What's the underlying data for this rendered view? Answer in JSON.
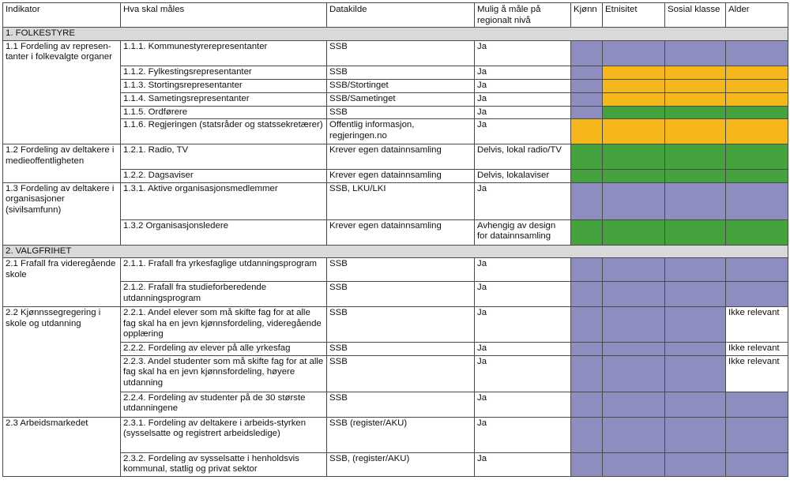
{
  "colors": {
    "purple": "#8d8dbf",
    "orange": "#f6b71a",
    "green": "#44a33c",
    "section_gray": "#d9d9d9"
  },
  "headers": {
    "indikator": "Indikator",
    "hva": "Hva skal måles",
    "datakilde": "Datakilde",
    "mulig": "Mulig å måle på regionalt nivå",
    "kjonn": "Kjønn",
    "etnisitet": "Etnisitet",
    "sosial": "Sosial klasse",
    "alder": "Alder"
  },
  "sections": {
    "s1": "1. FOLKESTYRE",
    "s2": "2. VALGFRIHET"
  },
  "indicators": {
    "i11": "1.1 Fordeling av represen-tanter i folkevalgte organer",
    "i12": "1.2 Fordeling av deltakere i medieoffentligheten",
    "i13": "1.3 Fordeling av deltakere i organisasjoner (sivilsamfunn)",
    "i21": "2.1 Frafall fra videregående skole",
    "i22": "2.2 Kjønnssegregering i skole og utdanning",
    "i23": "2.3 Arbeidsmarkedet"
  },
  "rows": [
    {
      "hva": "1.1.1. Kommunestyrerepresentanter",
      "kilde": "SSB",
      "mulig": "Ja",
      "alder": ""
    },
    {
      "hva": "1.1.2. Fylkestingsrepresentanter",
      "kilde": "SSB",
      "mulig": "Ja",
      "alder": ""
    },
    {
      "hva": "1.1.3. Stortingsrepresentanter",
      "kilde": "SSB/Stortinget",
      "mulig": "Ja",
      "alder": ""
    },
    {
      "hva": "1.1.4. Sametingsrepresentanter",
      "kilde": "SSB/Sametinget",
      "mulig": "Ja",
      "alder": ""
    },
    {
      "hva": "1.1.5. Ordførere",
      "kilde": "SSB",
      "mulig": "Ja",
      "alder": ""
    },
    {
      "hva": "1.1.6. Regjeringen (statsråder og statssekretærer)",
      "kilde": "Offentlig informasjon, regjeringen.no",
      "mulig": "Ja",
      "alder": ""
    },
    {
      "hva": "1.2.1. Radio, TV",
      "kilde": "Krever egen datainnsamling",
      "mulig": "Delvis, lokal radio/TV",
      "alder": ""
    },
    {
      "hva": "1.2.2. Dagsaviser",
      "kilde": "Krever egen datainnsamling",
      "mulig": "Delvis, lokalaviser",
      "alder": ""
    },
    {
      "hva": "1.3.1. Aktive organisasjonsmedlemmer",
      "kilde": "SSB, LKU/LKI",
      "mulig": "Ja",
      "alder": ""
    },
    {
      "hva": "1.3.2 Organisasjonsledere",
      "kilde": "Krever egen datainnsamling",
      "mulig": "Avhengig av design for datainnsamling",
      "alder": ""
    },
    {
      "hva": "2.1.1. Frafall fra yrkesfaglige utdanningsprogram",
      "kilde": "SSB",
      "mulig": "Ja",
      "alder": ""
    },
    {
      "hva": "2.1.2. Frafall fra studieforberedende utdanningsprogram",
      "kilde": "SSB",
      "mulig": "Ja",
      "alder": ""
    },
    {
      "hva": "2.2.1. Andel elever som må skifte fag for at alle fag skal ha en jevn kjønnsfordeling, videregående opplæring",
      "kilde": "SSB",
      "mulig": "Ja",
      "alder": "Ikke relevant"
    },
    {
      "hva": "2.2.2. Fordeling av elever på alle yrkesfag",
      "kilde": "SSB",
      "mulig": "Ja",
      "alder": "Ikke relevant"
    },
    {
      "hva": "2.2.3.  Andel studenter som må skifte fag for at alle fag skal ha en jevn kjønnsfordeling, høyere utdanning",
      "kilde": "SSB",
      "mulig": "Ja",
      "alder": "Ikke relevant"
    },
    {
      "hva": "2.2.4. Fordeling av studenter på de 30 største utdanningene",
      "kilde": "SSB",
      "mulig": "Ja",
      "alder": ""
    },
    {
      "hva": "2.3.1. Fordeling av deltakere i arbeids-styrken (sysselsatte og registrert arbeidsledige)",
      "kilde": "SSB (register/AKU)",
      "mulig": "Ja",
      "alder": ""
    },
    {
      "hva": "2.3.2. Fordeling av sysselsatte i henholdsvis kommunal, statlig og privat sektor",
      "kilde": "SSB, (register/AKU)",
      "mulig": "Ja",
      "alder": ""
    }
  ]
}
